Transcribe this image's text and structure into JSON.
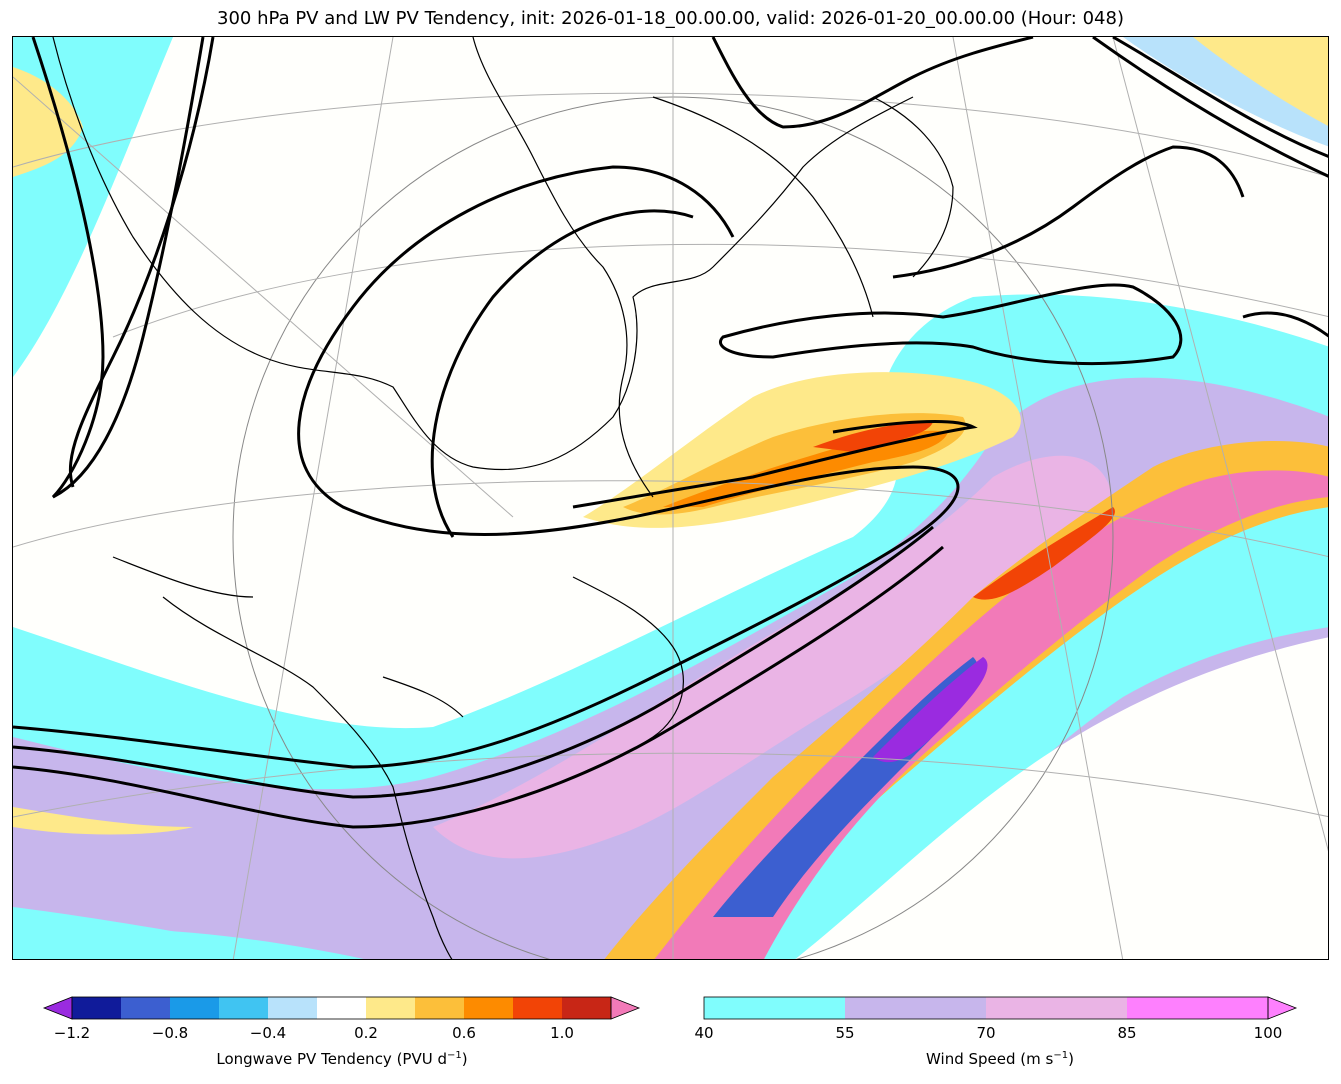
{
  "title": "300 hPa PV and LW PV Tendency, init: 2026-01-18_00.00.00, valid: 2026-01-20_00.00.00 (Hour: 048)",
  "colorbar_tendency": {
    "label": "Longwave PV Tendency (PVU d",
    "label_exp": "−1",
    "label_close": ")",
    "ticks": [
      "−1.2",
      "−0.8",
      "−0.4",
      "0.2",
      "0.6",
      "1.0"
    ],
    "colors": [
      "#9a2be0",
      "#101b9a",
      "#3c5fd0",
      "#1a9ae8",
      "#40c4f2",
      "#b8e2fb",
      "#ffffff",
      "#fee98a",
      "#fcbf3a",
      "#fd8b00",
      "#f24406",
      "#c82616",
      "#f27ab8"
    ]
  },
  "colorbar_wind": {
    "label": "Wind Speed (m s",
    "label_exp": "−1",
    "label_close": ")",
    "ticks": [
      "40",
      "55",
      "70",
      "85",
      "100"
    ],
    "colors": [
      "#80fdfd",
      "#c7b6ec",
      "#eab4e5",
      "#fe80fe"
    ]
  },
  "map": {
    "fill_colors": {
      "wind_40": "#80fdfd",
      "wind_55": "#c7b6ec",
      "wind_70": "#eab4e5",
      "pos_small": "#fee98a",
      "pos_mid": "#fcbf3a",
      "pos_high": "#fd8b00",
      "pos_max": "#f24406",
      "neg_small": "#b8e2fb",
      "neg_mid": "#1a9ae8",
      "neg_high": "#3c5fd0",
      "pink": "#f27ab8",
      "purple": "#9a2be0"
    }
  }
}
